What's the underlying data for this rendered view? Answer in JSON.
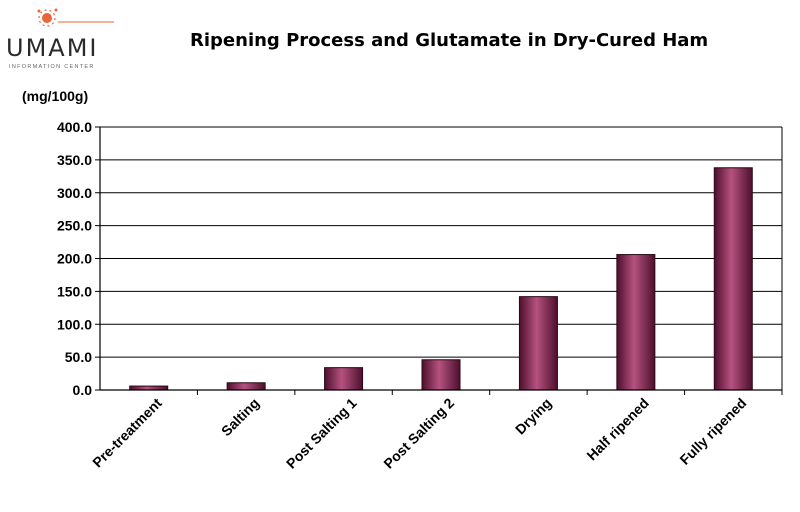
{
  "logo": {
    "word": "UMAMI",
    "sub": "INFORMATION CENTER",
    "accent": "#e8663a"
  },
  "chart_data": {
    "type": "bar",
    "title": "Ripening Process and Glutamate in Dry-Cured Ham",
    "ylabel": "(mg/100g)",
    "xlabel": "",
    "categories": [
      "Pre-treatment",
      "Salting",
      "Post Salting 1",
      "Post Salting 2",
      "Drying",
      "Half ripened",
      "Fully ripened"
    ],
    "values": [
      6,
      11,
      34,
      46,
      142,
      206,
      338
    ],
    "ylim": [
      0,
      400
    ],
    "yticks": [
      "0.0",
      "50.0",
      "100.0",
      "150.0",
      "200.0",
      "250.0",
      "300.0",
      "350.0",
      "400.0"
    ],
    "grid": true,
    "legend": "none",
    "colors": {
      "bar": "#7a1f4a",
      "bar_light": "#b5527f",
      "bar_dark": "#4d0f2c"
    }
  }
}
